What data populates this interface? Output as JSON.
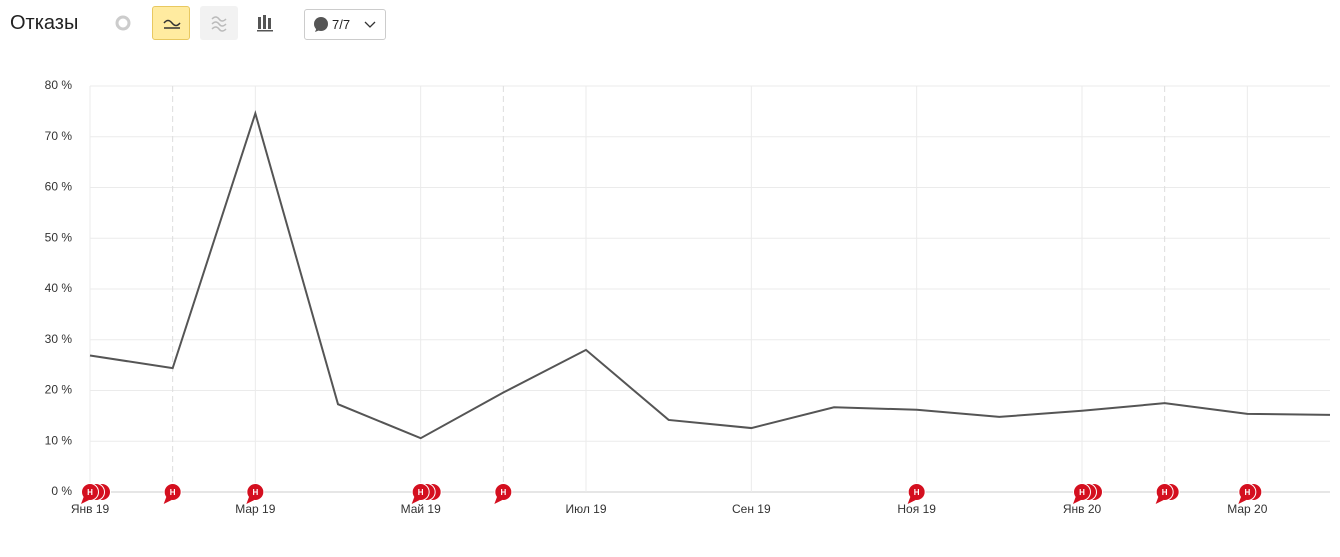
{
  "header": {
    "title": "Отказы",
    "comment_counter": "7/7"
  },
  "chart_data": {
    "type": "line",
    "categories": [
      "Янв 19",
      null,
      "Мар 19",
      null,
      "Май 19",
      null,
      "Июл 19",
      null,
      "Сен 19",
      null,
      "Ноя 19",
      null,
      "Янв 20",
      null,
      "Мар 20",
      null
    ],
    "values": [
      26.9,
      24.4,
      74.6,
      17.3,
      10.6,
      19.6,
      28.0,
      14.2,
      12.6,
      16.7,
      16.2,
      14.8,
      16.0,
      17.5,
      15.4,
      15.2
    ],
    "color": "#555555",
    "ylim": [
      0,
      80
    ],
    "yticks": [
      {
        "value": 0,
        "label": "0 %"
      },
      {
        "value": 10,
        "label": "10 %"
      },
      {
        "value": 20,
        "label": "20 %"
      },
      {
        "value": 30,
        "label": "30 %"
      },
      {
        "value": 40,
        "label": "40 %"
      },
      {
        "value": 50,
        "label": "50 %"
      },
      {
        "value": 60,
        "label": "60 %"
      },
      {
        "value": 70,
        "label": "70 %"
      },
      {
        "value": 80,
        "label": "80 %"
      }
    ],
    "grid": true,
    "annotations": [
      {
        "index": 0,
        "count": 3,
        "label": "Н"
      },
      {
        "index": 1,
        "count": 1,
        "label": "Н"
      },
      {
        "index": 2,
        "count": 1,
        "label": "Н"
      },
      {
        "index": 4,
        "count": 3,
        "label": "Н"
      },
      {
        "index": 5,
        "count": 1,
        "label": "Н"
      },
      {
        "index": 10,
        "count": 1,
        "label": "Н"
      },
      {
        "index": 12,
        "count": 3,
        "label": "Н"
      },
      {
        "index": 13,
        "count": 2,
        "label": "Н"
      },
      {
        "index": 14,
        "count": 2,
        "label": "Н"
      }
    ]
  }
}
